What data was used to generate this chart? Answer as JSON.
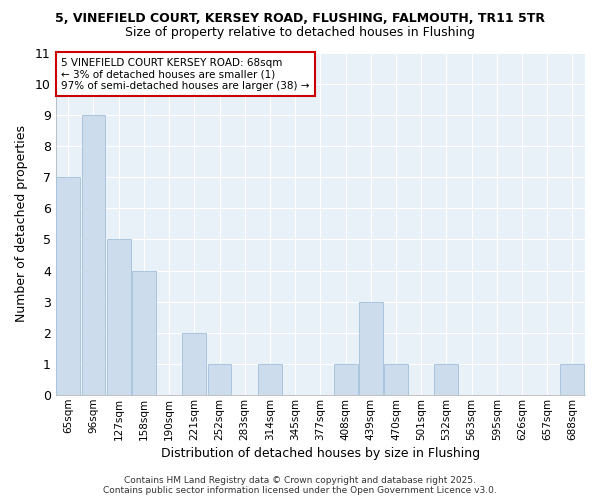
{
  "title1": "5, VINEFIELD COURT, KERSEY ROAD, FLUSHING, FALMOUTH, TR11 5TR",
  "title2": "Size of property relative to detached houses in Flushing",
  "xlabel": "Distribution of detached houses by size in Flushing",
  "ylabel": "Number of detached properties",
  "categories": [
    "65sqm",
    "96sqm",
    "127sqm",
    "158sqm",
    "190sqm",
    "221sqm",
    "252sqm",
    "283sqm",
    "314sqm",
    "345sqm",
    "377sqm",
    "408sqm",
    "439sqm",
    "470sqm",
    "501sqm",
    "532sqm",
    "563sqm",
    "595sqm",
    "626sqm",
    "657sqm",
    "688sqm"
  ],
  "values": [
    7,
    9,
    5,
    4,
    0,
    2,
    1,
    0,
    1,
    0,
    0,
    1,
    3,
    1,
    0,
    1,
    0,
    0,
    0,
    0,
    1
  ],
  "bar_color": "#ccdcec",
  "bar_edge_color": "#aac4dc",
  "ylim": [
    0,
    11
  ],
  "yticks": [
    0,
    1,
    2,
    3,
    4,
    5,
    6,
    7,
    8,
    9,
    10,
    11
  ],
  "annotation_box_text": "5 VINEFIELD COURT KERSEY ROAD: 68sqm\n← 3% of detached houses are smaller (1)\n97% of semi-detached houses are larger (38) →",
  "annotation_box_color": "#ffffff",
  "annotation_box_edge": "#cc0000",
  "footer_text": "Contains HM Land Registry data © Crown copyright and database right 2025.\nContains public sector information licensed under the Open Government Licence v3.0.",
  "bg_color": "#ffffff",
  "plot_bg_color": "#e8f0f8",
  "grid_color": "#ffffff"
}
